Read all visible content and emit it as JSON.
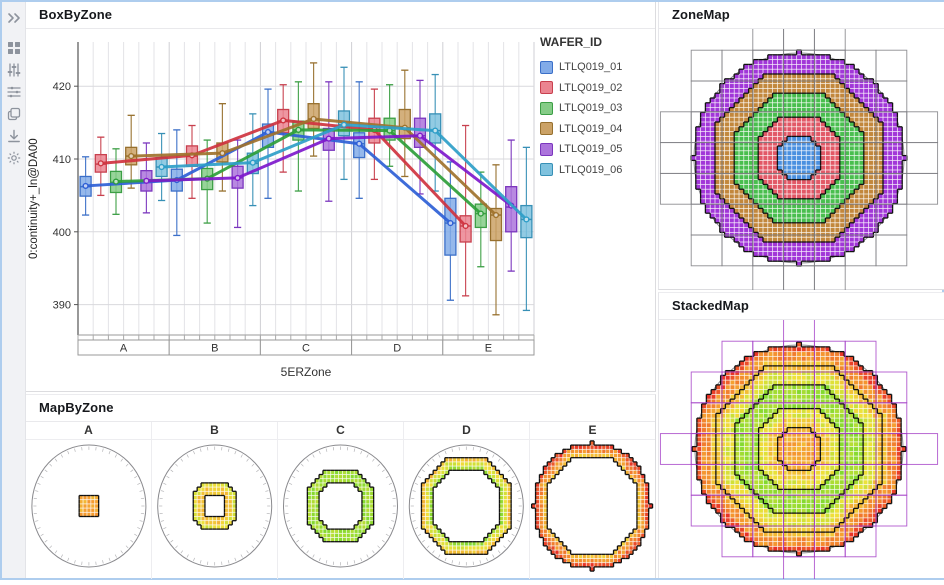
{
  "window": {
    "border_color": "#aecdee",
    "background": "#ffffff"
  },
  "sidebar": {
    "icons": [
      "expand-panel",
      "dashboard-grid",
      "filter-sliders",
      "list-settings",
      "copy-layers",
      "download",
      "settings-gear"
    ]
  },
  "panels": {
    "box_by_zone": {
      "title": "BoxByZone"
    },
    "zone_map": {
      "title": "ZoneMap"
    },
    "stacked_map": {
      "title": "StackedMap"
    },
    "map_by_zone": {
      "title": "MapByZone"
    }
  },
  "chart_data": {
    "box": {
      "type": "box",
      "title": "BoxByZone",
      "xlabel": "5ERZone",
      "ylabel": "0:continuity+_ln@DA00",
      "ylim": [
        385.5,
        426.5
      ],
      "yticks": [
        390,
        400,
        410,
        420
      ],
      "zones": [
        "A",
        "B",
        "C",
        "D",
        "E"
      ],
      "legend_title": "WAFER_ID",
      "legend_position": "right",
      "grid": true,
      "stats_order": [
        "low",
        "q1",
        "median",
        "q3",
        "high",
        "mean"
      ],
      "series": [
        {
          "name": "LTLQ019_01",
          "fill": "#82ABE8",
          "stroke": "#3B6FC8",
          "line": "#2E5FD6",
          "zones": [
            [
              402.3,
              404.9,
              406.2,
              407.6,
              410.3,
              406.3
            ],
            [
              399.5,
              405.6,
              407.0,
              408.6,
              414.0,
              407.1
            ],
            [
              404.6,
              411.6,
              413.6,
              414.8,
              419.6,
              413.7
            ],
            [
              404.6,
              410.2,
              412.1,
              413.6,
              420.6,
              412.1
            ],
            [
              390.6,
              396.8,
              401.2,
              404.6,
              409.6,
              401.2
            ]
          ]
        },
        {
          "name": "LTLQ019_02",
          "fill": "#EB8490",
          "stroke": "#C8404E",
          "line": "#CF333F",
          "zones": [
            [
              405.0,
              408.2,
              409.3,
              410.6,
              413.0,
              409.4
            ],
            [
              404.6,
              409.0,
              410.4,
              411.8,
              414.6,
              410.5
            ],
            [
              408.2,
              413.6,
              415.2,
              416.8,
              420.2,
              415.3
            ],
            [
              407.2,
              412.2,
              414.0,
              415.6,
              419.6,
              414.0
            ],
            [
              391.2,
              398.6,
              400.8,
              402.2,
              414.6,
              400.8
            ]
          ]
        },
        {
          "name": "LTLQ019_03",
          "fill": "#85CC87",
          "stroke": "#3C9E45",
          "line": "#2E9E3A",
          "zones": [
            [
              402.4,
              405.4,
              406.8,
              408.3,
              411.4,
              406.9
            ],
            [
              401.2,
              405.8,
              407.2,
              408.7,
              412.6,
              407.3
            ],
            [
              405.6,
              412.6,
              414.0,
              415.2,
              420.6,
              414.0
            ],
            [
              409.0,
              412.6,
              413.9,
              415.6,
              420.2,
              413.9
            ],
            [
              395.2,
              400.6,
              402.5,
              403.8,
              408.2,
              402.5
            ]
          ]
        },
        {
          "name": "LTLQ019_04",
          "fill": "#CBA266",
          "stroke": "#97702E",
          "line": "#A0722C",
          "zones": [
            [
              406.0,
              409.2,
              410.4,
              411.6,
              416.0,
              410.4
            ],
            [
              405.6,
              409.6,
              410.8,
              412.2,
              417.6,
              410.8
            ],
            [
              410.4,
              414.2,
              415.5,
              417.6,
              423.2,
              415.5
            ],
            [
              407.6,
              412.8,
              414.3,
              416.8,
              422.2,
              414.3
            ],
            [
              388.6,
              398.8,
              402.3,
              403.2,
              409.2,
              402.3
            ]
          ]
        },
        {
          "name": "LTLQ019_05",
          "fill": "#AC74DC",
          "stroke": "#7B36BE",
          "line": "#7E18CC",
          "zones": [
            [
              402.6,
              405.6,
              407.0,
              408.4,
              412.2,
              407.0
            ],
            [
              400.6,
              406.0,
              407.4,
              409.0,
              412.6,
              407.4
            ],
            [
              404.2,
              411.2,
              412.8,
              414.2,
              420.6,
              412.8
            ],
            [
              405.2,
              411.6,
              413.2,
              415.6,
              420.8,
              413.2
            ],
            [
              394.6,
              400.0,
              403.4,
              406.2,
              412.6,
              403.6
            ]
          ]
        },
        {
          "name": "LTLQ019_06",
          "fill": "#7FC2DE",
          "stroke": "#3790B6",
          "line": "#2E9EC8",
          "zones": [
            [
              404.3,
              407.6,
              408.9,
              410.2,
              413.5,
              408.9
            ],
            [
              403.6,
              408.0,
              409.4,
              410.8,
              416.2,
              409.5
            ],
            [
              407.2,
              413.2,
              414.7,
              416.6,
              422.6,
              414.7
            ],
            [
              405.6,
              412.2,
              413.9,
              416.2,
              421.6,
              413.9
            ],
            [
              389.2,
              399.2,
              401.7,
              403.6,
              411.6,
              401.7
            ]
          ]
        }
      ]
    },
    "wafer_maps": {
      "type": "heatmap",
      "zone_labels": [
        "A",
        "B",
        "C",
        "D",
        "E"
      ],
      "zone_thresholds": [
        0.2,
        0.4,
        0.6,
        0.8,
        1.01
      ],
      "zone_colors": [
        "#4A90E0",
        "#E25866",
        "#49BE4E",
        "#C2873C",
        "#A136D8"
      ],
      "zone_map": {
        "title": "ZoneMap",
        "reticle_color": "#7b7b80"
      },
      "stacked_map": {
        "title": "StackedMap",
        "reticle_color": "#A23CC6"
      },
      "heat_palette": [
        [
          0.0,
          "#3FD428"
        ],
        [
          0.45,
          "#EFE23A"
        ],
        [
          0.7,
          "#F59D30"
        ],
        [
          1.0,
          "#E83026"
        ]
      ],
      "heat_bands": [
        [
          0.2,
          0.66
        ],
        [
          0.3,
          0.55
        ],
        [
          0.4,
          0.42
        ],
        [
          0.62,
          0.24
        ],
        [
          0.73,
          0.42
        ],
        [
          0.82,
          0.58
        ],
        [
          0.92,
          0.74
        ],
        [
          1.01,
          0.93
        ]
      ]
    }
  }
}
